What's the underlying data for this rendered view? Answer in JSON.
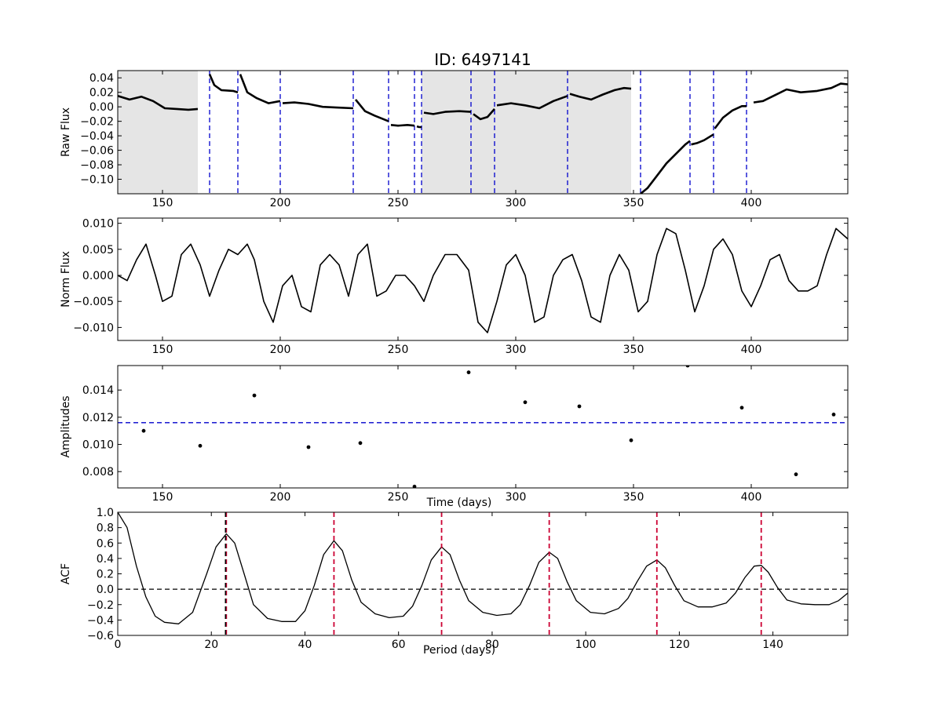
{
  "title": "ID: 6497141",
  "colors": {
    "vline": "#0000cc",
    "hline_amp": "#0000cc",
    "acf_peak": "#cc0033",
    "acf_best": "#000000",
    "shade": "#e5e5e5",
    "ink": "#000000"
  },
  "chart_data": [
    {
      "id": "raw",
      "type": "line",
      "ylabel": "Raw Flux",
      "xlabel": "",
      "xlim": [
        131,
        441
      ],
      "ylim": [
        -0.12,
        0.05
      ],
      "xticks": [
        150,
        200,
        250,
        300,
        350,
        400
      ],
      "yticks": [
        -0.1,
        -0.08,
        -0.06,
        -0.04,
        -0.02,
        0.0,
        0.02,
        0.04
      ],
      "ytick_labels": [
        "−0.10",
        "−0.08",
        "−0.06",
        "−0.04",
        "−0.02",
        "0.00",
        "0.02",
        "0.04"
      ],
      "shaded_regions": [
        [
          131,
          165
        ],
        [
          260,
          349
        ]
      ],
      "vlines": [
        170,
        182,
        200,
        231,
        246,
        257,
        260,
        281,
        291,
        322,
        353,
        374,
        384,
        398
      ],
      "segments": [
        {
          "x": [
            131,
            136,
            141,
            146,
            151,
            156,
            161,
            165
          ],
          "y": [
            0.015,
            0.01,
            0.014,
            0.008,
            -0.002,
            -0.003,
            -0.004,
            -0.003
          ]
        },
        {
          "x": [
            170,
            172,
            175,
            180,
            182
          ],
          "y": [
            0.045,
            0.03,
            0.023,
            0.022,
            0.02
          ]
        },
        {
          "x": [
            183,
            186,
            190,
            195,
            200
          ],
          "y": [
            0.045,
            0.02,
            0.012,
            0.005,
            0.008
          ]
        },
        {
          "x": [
            201,
            206,
            212,
            218,
            224,
            231
          ],
          "y": [
            0.005,
            0.006,
            0.004,
            0.0,
            -0.001,
            -0.002
          ]
        },
        {
          "x": [
            232,
            236,
            240,
            246
          ],
          "y": [
            0.01,
            -0.006,
            -0.012,
            -0.02
          ]
        },
        {
          "x": [
            247,
            250,
            254,
            257
          ],
          "y": [
            -0.025,
            -0.026,
            -0.025,
            -0.026
          ]
        },
        {
          "x": [
            258,
            259,
            260
          ],
          "y": [
            -0.027,
            -0.028,
            -0.028
          ]
        },
        {
          "x": [
            261,
            265,
            270,
            276,
            281
          ],
          "y": [
            -0.008,
            -0.01,
            -0.007,
            -0.006,
            -0.007
          ]
        },
        {
          "x": [
            282,
            285,
            288,
            291
          ],
          "y": [
            -0.01,
            -0.017,
            -0.014,
            -0.003
          ]
        },
        {
          "x": [
            292,
            298,
            304,
            310,
            316,
            322
          ],
          "y": [
            0.002,
            0.005,
            0.002,
            -0.002,
            0.008,
            0.015
          ]
        },
        {
          "x": [
            323,
            327,
            332,
            337,
            342,
            346,
            349
          ],
          "y": [
            0.018,
            0.014,
            0.01,
            0.017,
            0.023,
            0.026,
            0.025
          ]
        },
        {
          "x": [
            353,
            356,
            360,
            364,
            368,
            372,
            374
          ],
          "y": [
            -0.12,
            -0.112,
            -0.095,
            -0.078,
            -0.065,
            -0.052,
            -0.047
          ]
        },
        {
          "x": [
            374.5,
            377,
            380,
            384
          ],
          "y": [
            -0.052,
            -0.05,
            -0.046,
            -0.038
          ]
        },
        {
          "x": [
            384.5,
            388,
            392,
            396,
            398
          ],
          "y": [
            -0.03,
            -0.015,
            -0.005,
            0.001,
            0.001
          ]
        },
        {
          "x": [
            401,
            405,
            410,
            415,
            421,
            428,
            434,
            438,
            441
          ],
          "y": [
            0.006,
            0.008,
            0.016,
            0.024,
            0.02,
            0.022,
            0.026,
            0.032,
            0.031
          ]
        }
      ]
    },
    {
      "id": "norm",
      "type": "line",
      "ylabel": "Norm Flux",
      "xlabel": "",
      "xlim": [
        131,
        441
      ],
      "ylim": [
        -0.0125,
        0.011
      ],
      "xticks": [
        150,
        200,
        250,
        300,
        350,
        400
      ],
      "yticks": [
        -0.01,
        -0.005,
        0.0,
        0.005,
        0.01
      ],
      "ytick_labels": [
        "−0.010",
        "−0.005",
        "0.000",
        "0.005",
        "0.010"
      ],
      "x": [
        131,
        135,
        139,
        143,
        147,
        150,
        154,
        158,
        162,
        166,
        170,
        174,
        178,
        182,
        186,
        189,
        193,
        197,
        201,
        205,
        209,
        213,
        217,
        221,
        225,
        229,
        233,
        237,
        241,
        245,
        249,
        253,
        257,
        261,
        265,
        270,
        275,
        280,
        284,
        288,
        292,
        296,
        300,
        304,
        308,
        312,
        316,
        320,
        324,
        328,
        332,
        336,
        340,
        344,
        348,
        352,
        356,
        360,
        364,
        368,
        372,
        376,
        380,
        384,
        388,
        392,
        396,
        400,
        404,
        408,
        412,
        416,
        420,
        424,
        428,
        432,
        436,
        441
      ],
      "y": [
        0.0,
        -0.001,
        0.003,
        0.006,
        0.0,
        -0.005,
        -0.004,
        0.004,
        0.006,
        0.002,
        -0.004,
        0.001,
        0.005,
        0.004,
        0.006,
        0.003,
        -0.005,
        -0.009,
        -0.002,
        0.0,
        -0.006,
        -0.007,
        0.002,
        0.004,
        0.002,
        -0.004,
        0.004,
        0.006,
        -0.004,
        -0.003,
        0.0,
        0.0,
        -0.002,
        -0.005,
        0.0,
        0.004,
        0.004,
        0.001,
        -0.009,
        -0.011,
        -0.005,
        0.002,
        0.004,
        0.0,
        -0.009,
        -0.008,
        0.0,
        0.003,
        0.004,
        -0.001,
        -0.008,
        -0.009,
        0.0,
        0.004,
        0.001,
        -0.007,
        -0.005,
        0.004,
        0.009,
        0.008,
        0.001,
        -0.007,
        -0.002,
        0.005,
        0.007,
        0.004,
        -0.003,
        -0.006,
        -0.002,
        0.003,
        0.004,
        -0.001,
        -0.003,
        -0.003,
        -0.002,
        0.004,
        0.009,
        0.007
      ]
    },
    {
      "id": "amp",
      "type": "scatter",
      "ylabel": "Amplitudes",
      "xlabel": "Time (days)",
      "xlim": [
        131,
        441
      ],
      "ylim": [
        0.0068,
        0.0158
      ],
      "xticks": [
        150,
        200,
        250,
        300,
        350,
        400
      ],
      "yticks": [
        0.008,
        0.01,
        0.012,
        0.014
      ],
      "ytick_labels": [
        "0.008",
        "0.010",
        "0.012",
        "0.014"
      ],
      "x": [
        142,
        166,
        189,
        212,
        234,
        257,
        280,
        304,
        327,
        349,
        373,
        396,
        419,
        435
      ],
      "y": [
        0.011,
        0.0099,
        0.0136,
        0.0098,
        0.0101,
        0.0069,
        0.0153,
        0.0131,
        0.0128,
        0.0103,
        0.0158,
        0.0127,
        0.0078,
        0.0122
      ],
      "hline": 0.0116
    },
    {
      "id": "acf",
      "type": "line",
      "ylabel": "ACF",
      "xlabel": "Period (days)",
      "xlim": [
        0,
        156
      ],
      "ylim": [
        -0.6,
        1.0
      ],
      "xticks": [
        0,
        20,
        40,
        60,
        80,
        100,
        120,
        140
      ],
      "yticks": [
        -0.6,
        -0.4,
        -0.2,
        0.0,
        0.2,
        0.4,
        0.6,
        0.8,
        1.0
      ],
      "ytick_labels": [
        "−0.6",
        "−0.4",
        "−0.2",
        "0.0",
        "0.2",
        "0.4",
        "0.6",
        "0.8",
        "1.0"
      ],
      "best_period": 23.2,
      "peak_lines": [
        23.2,
        46.2,
        69.2,
        92.2,
        115.2,
        137.5
      ],
      "hline": 0.0,
      "x": [
        0,
        2,
        4,
        6,
        8,
        10,
        13,
        16,
        19,
        21,
        23.2,
        25,
        27,
        29,
        32,
        35,
        38,
        40,
        42,
        44,
        46.2,
        48,
        50,
        52,
        55,
        58,
        61,
        63,
        65,
        67,
        69.2,
        71,
        73,
        75,
        78,
        81,
        84,
        86,
        88,
        90,
        92.2,
        94,
        96,
        98,
        101,
        104,
        107,
        109,
        111,
        113,
        115.2,
        117,
        119,
        121,
        124,
        127,
        130,
        132,
        134,
        136,
        137.5,
        139,
        141,
        143,
        146,
        149,
        152,
        154,
        156
      ],
      "y": [
        1.0,
        0.8,
        0.3,
        -0.1,
        -0.35,
        -0.43,
        -0.45,
        -0.3,
        0.2,
        0.55,
        0.72,
        0.6,
        0.2,
        -0.2,
        -0.38,
        -0.42,
        -0.42,
        -0.28,
        0.05,
        0.45,
        0.63,
        0.5,
        0.12,
        -0.17,
        -0.32,
        -0.37,
        -0.35,
        -0.22,
        0.05,
        0.38,
        0.55,
        0.45,
        0.12,
        -0.15,
        -0.3,
        -0.34,
        -0.32,
        -0.2,
        0.05,
        0.35,
        0.48,
        0.4,
        0.1,
        -0.15,
        -0.3,
        -0.32,
        -0.25,
        -0.12,
        0.1,
        0.3,
        0.38,
        0.28,
        0.05,
        -0.15,
        -0.23,
        -0.23,
        -0.18,
        -0.05,
        0.15,
        0.3,
        0.31,
        0.22,
        0.02,
        -0.14,
        -0.19,
        -0.2,
        -0.2,
        -0.15,
        -0.05
      ]
    }
  ]
}
